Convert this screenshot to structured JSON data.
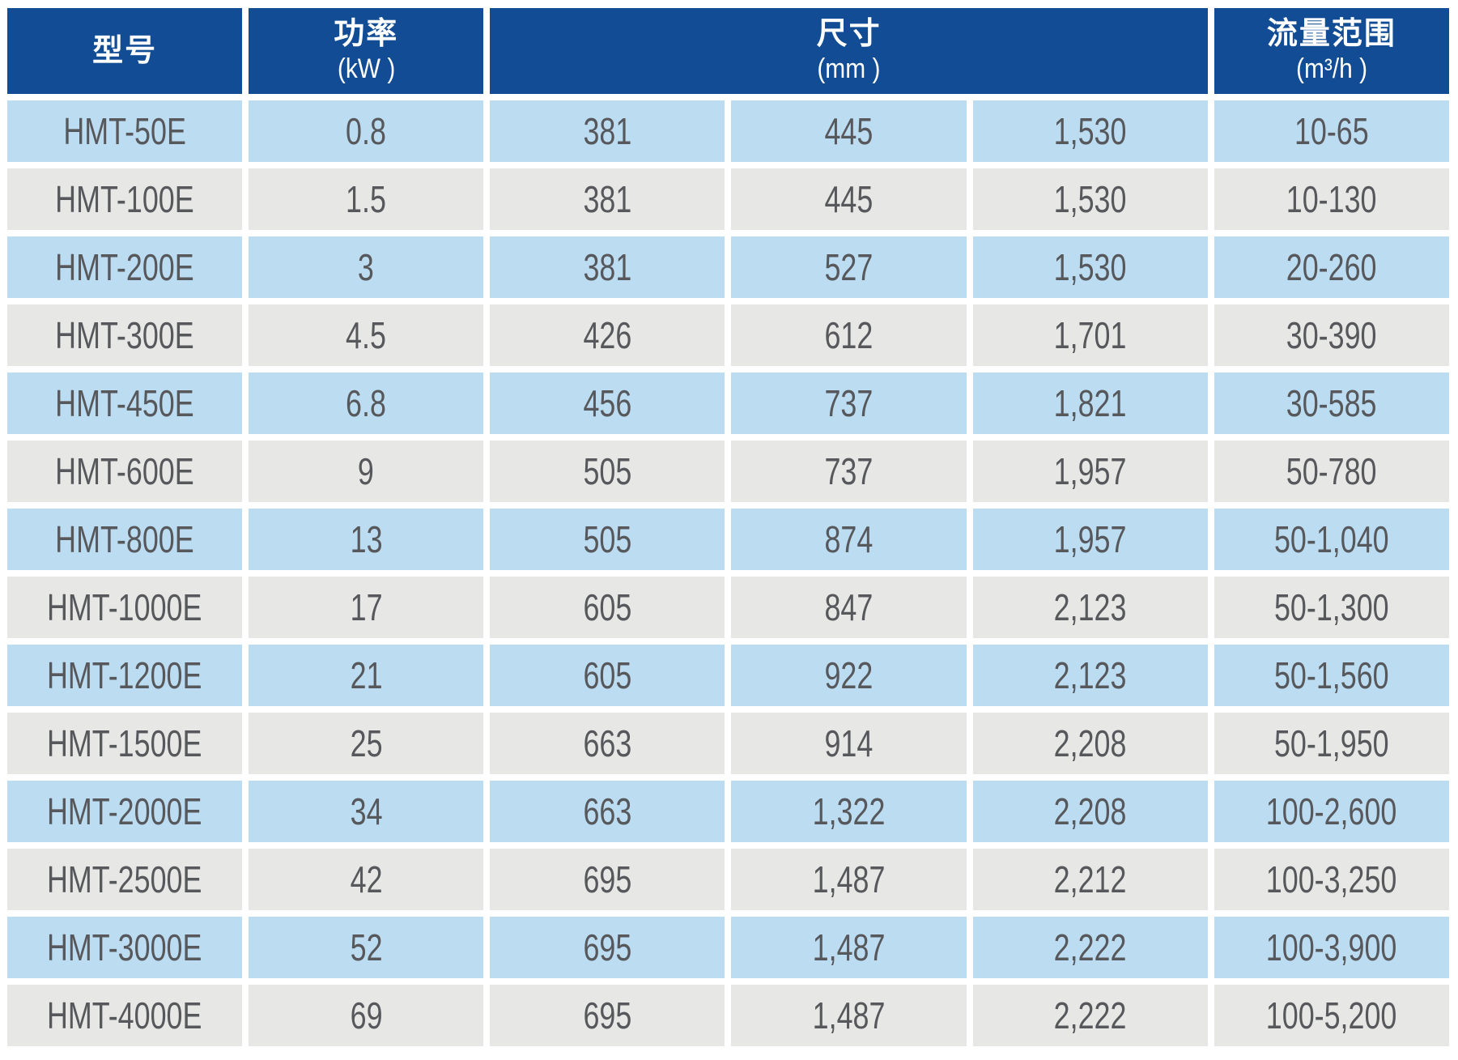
{
  "header": {
    "model": "型号",
    "power": "功率",
    "power_unit": "(kW )",
    "dimensions": "尺寸",
    "dimensions_unit": "(mm )",
    "flow": "流量范围",
    "flow_unit": "(m³/h )"
  },
  "rows": [
    [
      "HMT-50E",
      "0.8",
      "381",
      "445",
      "1,530",
      "10-65"
    ],
    [
      "HMT-100E",
      "1.5",
      "381",
      "445",
      "1,530",
      "10-130"
    ],
    [
      "HMT-200E",
      "3",
      "381",
      "527",
      "1,530",
      "20-260"
    ],
    [
      "HMT-300E",
      "4.5",
      "426",
      "612",
      "1,701",
      "30-390"
    ],
    [
      "HMT-450E",
      "6.8",
      "456",
      "737",
      "1,821",
      "30-585"
    ],
    [
      "HMT-600E",
      "9",
      "505",
      "737",
      "1,957",
      "50-780"
    ],
    [
      "HMT-800E",
      "13",
      "505",
      "874",
      "1,957",
      "50-1,040"
    ],
    [
      "HMT-1000E",
      "17",
      "605",
      "847",
      "2,123",
      "50-1,300"
    ],
    [
      "HMT-1200E",
      "21",
      "605",
      "922",
      "2,123",
      "50-1,560"
    ],
    [
      "HMT-1500E",
      "25",
      "663",
      "914",
      "2,208",
      "50-1,950"
    ],
    [
      "HMT-2000E",
      "34",
      "663",
      "1,322",
      "2,208",
      "100-2,600"
    ],
    [
      "HMT-2500E",
      "42",
      "695",
      "1,487",
      "2,212",
      "100-3,250"
    ],
    [
      "HMT-3000E",
      "52",
      "695",
      "1,487",
      "2,222",
      "100-3,900"
    ],
    [
      "HMT-4000E",
      "69",
      "695",
      "1,487",
      "2,222",
      "100-5,200"
    ]
  ],
  "colors": {
    "header_bg": "#114C95",
    "header_text": "#FFFFFF",
    "row_blue": "#BCDCF2",
    "row_gray": "#E7E7E5",
    "cell_text": "#57585C"
  }
}
